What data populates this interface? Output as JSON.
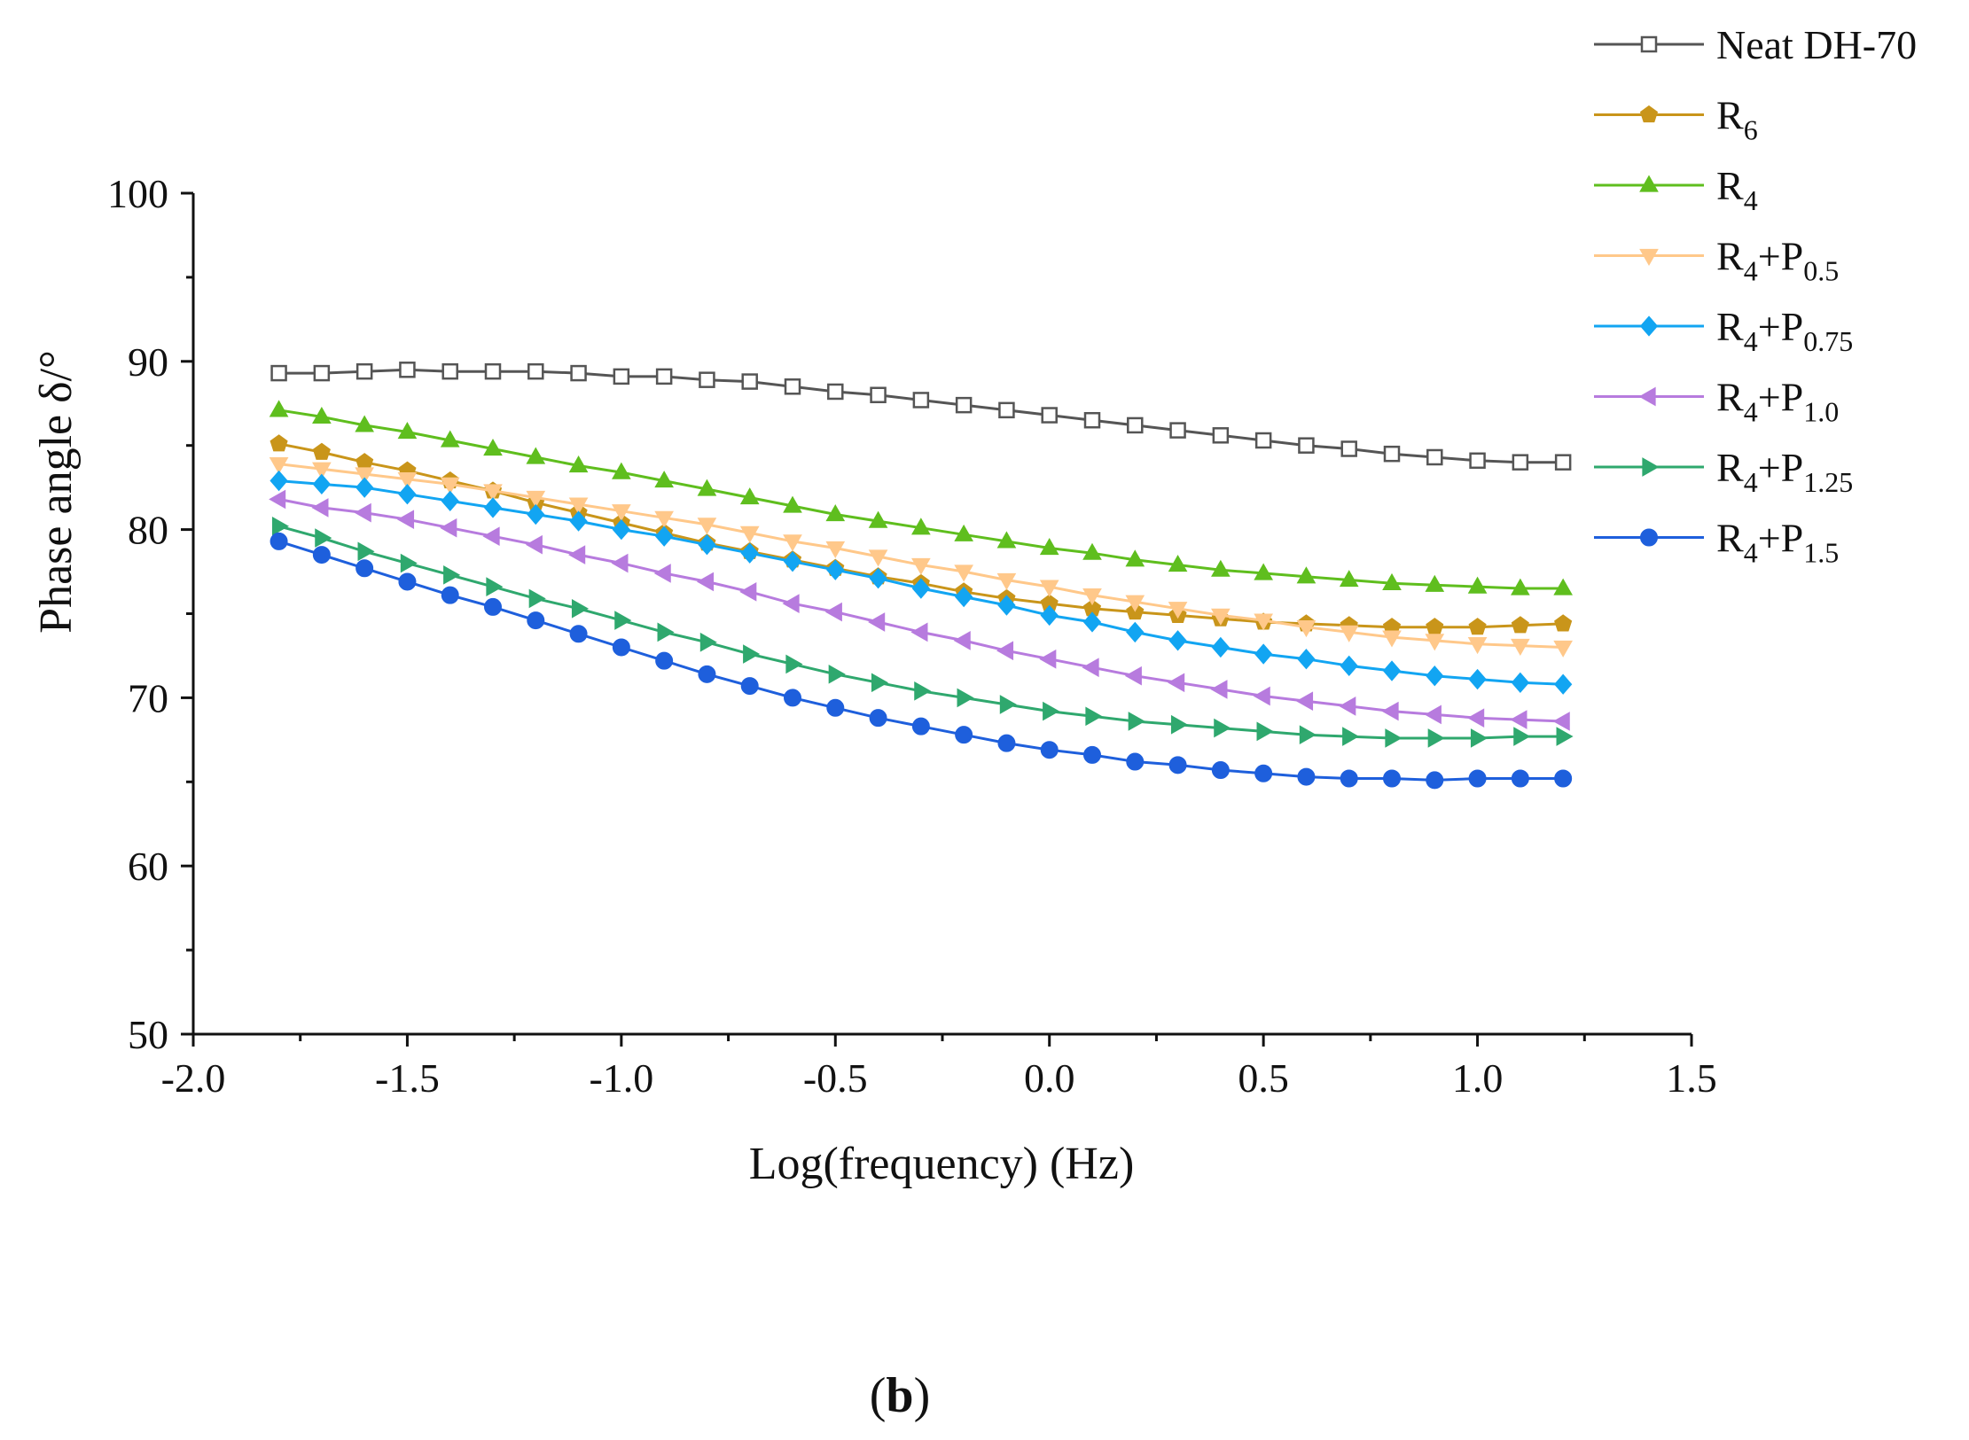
{
  "chart_data": {
    "type": "line",
    "title": "",
    "xlabel": "Log(frequency) (Hz)",
    "ylabel": "Phase angle δ/°",
    "xlim": [
      -2.0,
      1.5
    ],
    "ylim": [
      50,
      100
    ],
    "x_ticks": [
      "-2.0",
      "-1.5",
      "-1.0",
      "-0.5",
      "0.0",
      "0.5",
      "1.0",
      "1.5"
    ],
    "y_ticks": [
      "50",
      "60",
      "70",
      "80",
      "90",
      "100"
    ],
    "grid": false,
    "legend_position": "top-right",
    "panel_label": {
      "open": "(",
      "letter": "b",
      "close": ")"
    },
    "x": [
      -1.8,
      -1.7,
      -1.6,
      -1.5,
      -1.4,
      -1.3,
      -1.2,
      -1.1,
      -1.0,
      -0.9,
      -0.8,
      -0.7,
      -0.6,
      -0.5,
      -0.4,
      -0.3,
      -0.2,
      -0.1,
      0.0,
      0.1,
      0.2,
      0.3,
      0.4,
      0.5,
      0.6,
      0.7,
      0.8,
      0.9,
      1.0,
      1.1,
      1.2
    ],
    "series": [
      {
        "name": "Neat DH-70",
        "label_main": "Neat DH-70",
        "label_sub": "",
        "label_rest": "",
        "label_sub2": "",
        "color": "#555555",
        "marker": "square-open",
        "values": [
          89.3,
          89.3,
          89.4,
          89.5,
          89.4,
          89.4,
          89.4,
          89.3,
          89.1,
          89.1,
          88.9,
          88.8,
          88.5,
          88.2,
          88.0,
          87.7,
          87.4,
          87.1,
          86.8,
          86.5,
          86.2,
          85.9,
          85.6,
          85.3,
          85.0,
          84.8,
          84.5,
          84.3,
          84.1,
          84.0,
          84.0
        ]
      },
      {
        "name": "R6",
        "label_main": "R",
        "label_sub": "6",
        "label_rest": "",
        "label_sub2": "",
        "color": "#C9951A",
        "marker": "pentagon",
        "values": [
          85.1,
          84.6,
          84.0,
          83.5,
          82.9,
          82.3,
          81.6,
          81.0,
          80.4,
          79.8,
          79.2,
          78.7,
          78.2,
          77.7,
          77.2,
          76.8,
          76.3,
          75.9,
          75.6,
          75.3,
          75.1,
          74.9,
          74.7,
          74.5,
          74.4,
          74.3,
          74.2,
          74.2,
          74.2,
          74.3,
          74.4
        ]
      },
      {
        "name": "R4",
        "label_main": "R",
        "label_sub": "4",
        "label_rest": "",
        "label_sub2": "",
        "color": "#5FBE1E",
        "marker": "triangle-up",
        "values": [
          87.1,
          86.7,
          86.2,
          85.8,
          85.3,
          84.8,
          84.3,
          83.8,
          83.4,
          82.9,
          82.4,
          81.9,
          81.4,
          80.9,
          80.5,
          80.1,
          79.7,
          79.3,
          78.9,
          78.6,
          78.2,
          77.9,
          77.6,
          77.4,
          77.2,
          77.0,
          76.8,
          76.7,
          76.6,
          76.5,
          76.5
        ]
      },
      {
        "name": "R4+P0.5",
        "label_main": "R",
        "label_sub": "4",
        "label_rest": "+P",
        "label_sub2": "0.5",
        "color": "#FFC88A",
        "marker": "triangle-down",
        "values": [
          83.9,
          83.6,
          83.3,
          83.0,
          82.7,
          82.3,
          81.9,
          81.5,
          81.1,
          80.7,
          80.3,
          79.8,
          79.3,
          78.9,
          78.4,
          77.9,
          77.5,
          77.0,
          76.6,
          76.1,
          75.7,
          75.3,
          74.9,
          74.6,
          74.2,
          73.9,
          73.6,
          73.4,
          73.2,
          73.1,
          73.0
        ]
      },
      {
        "name": "R4+P0.75",
        "label_main": "R",
        "label_sub": "4",
        "label_rest": "+P",
        "label_sub2": "0.75",
        "color": "#12A5F2",
        "marker": "diamond",
        "values": [
          82.9,
          82.7,
          82.5,
          82.1,
          81.7,
          81.3,
          80.9,
          80.5,
          80.0,
          79.6,
          79.1,
          78.6,
          78.1,
          77.6,
          77.1,
          76.5,
          76.0,
          75.5,
          74.9,
          74.5,
          73.9,
          73.4,
          73.0,
          72.6,
          72.3,
          71.9,
          71.6,
          71.3,
          71.1,
          70.9,
          70.8
        ]
      },
      {
        "name": "R4+P1.0",
        "label_main": "R",
        "label_sub": "4",
        "label_rest": "+P",
        "label_sub2": "1.0",
        "color": "#B77BDE",
        "marker": "triangle-left",
        "values": [
          81.8,
          81.3,
          81.0,
          80.6,
          80.1,
          79.6,
          79.1,
          78.5,
          78.0,
          77.4,
          76.9,
          76.3,
          75.6,
          75.1,
          74.5,
          73.9,
          73.4,
          72.8,
          72.3,
          71.8,
          71.3,
          70.9,
          70.5,
          70.1,
          69.8,
          69.5,
          69.2,
          69.0,
          68.8,
          68.7,
          68.6
        ]
      },
      {
        "name": "R4+P1.25",
        "label_main": "R",
        "label_sub": "4",
        "label_rest": "+P",
        "label_sub2": "1.25",
        "color": "#2FA86E",
        "marker": "triangle-right",
        "values": [
          80.2,
          79.5,
          78.7,
          78.0,
          77.3,
          76.6,
          75.9,
          75.3,
          74.6,
          73.9,
          73.3,
          72.6,
          72.0,
          71.4,
          70.9,
          70.4,
          70.0,
          69.6,
          69.2,
          68.9,
          68.6,
          68.4,
          68.2,
          68.0,
          67.8,
          67.7,
          67.6,
          67.6,
          67.6,
          67.7,
          67.7
        ]
      },
      {
        "name": "R4+P1.5",
        "label_main": "R",
        "label_sub": "4",
        "label_rest": "+P",
        "label_sub2": "1.5",
        "color": "#1E5FDC",
        "marker": "circle",
        "values": [
          79.3,
          78.5,
          77.7,
          76.9,
          76.1,
          75.4,
          74.6,
          73.8,
          73.0,
          72.2,
          71.4,
          70.7,
          70.0,
          69.4,
          68.8,
          68.3,
          67.8,
          67.3,
          66.9,
          66.6,
          66.2,
          66.0,
          65.7,
          65.5,
          65.3,
          65.2,
          65.2,
          65.1,
          65.2,
          65.2,
          65.2
        ]
      }
    ]
  }
}
